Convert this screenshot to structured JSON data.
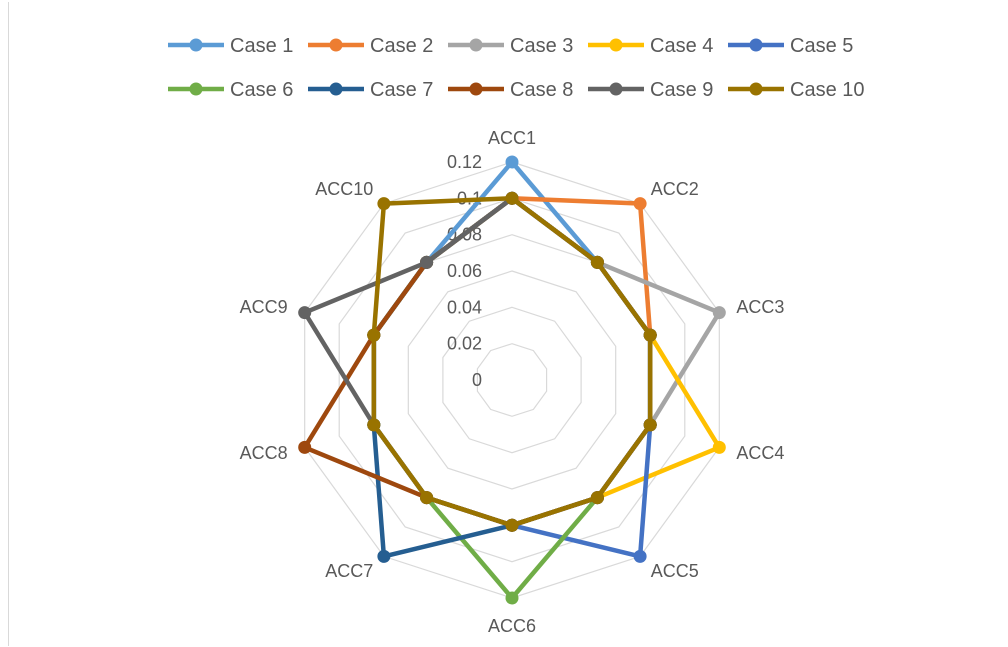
{
  "chart_data": {
    "type": "radar",
    "title": "",
    "categories": [
      "ACC1",
      "ACC2",
      "ACC3",
      "ACC4",
      "ACC5",
      "ACC6",
      "ACC7",
      "ACC8",
      "ACC9",
      "ACC10"
    ],
    "radial_ticks": [
      "0",
      "0.02",
      "0.04",
      "0.06",
      "0.08",
      "0.1",
      "0.12"
    ],
    "rlim": [
      0,
      0.12
    ],
    "grid": true,
    "legend": "top",
    "series": [
      {
        "name": "Case 1",
        "color": "#5B9BD5",
        "values": [
          0.12,
          0.08,
          0.08,
          0.08,
          0.08,
          0.08,
          0.08,
          0.08,
          0.08,
          0.08
        ]
      },
      {
        "name": "Case 2",
        "color": "#ED7D31",
        "values": [
          0.1,
          0.12,
          0.08,
          0.08,
          0.08,
          0.08,
          0.08,
          0.08,
          0.08,
          0.08
        ]
      },
      {
        "name": "Case 3",
        "color": "#A5A5A5",
        "values": [
          0.1,
          0.08,
          0.12,
          0.08,
          0.08,
          0.08,
          0.08,
          0.08,
          0.08,
          0.08
        ]
      },
      {
        "name": "Case 4",
        "color": "#FFC000",
        "values": [
          0.1,
          0.08,
          0.08,
          0.12,
          0.08,
          0.08,
          0.08,
          0.08,
          0.08,
          0.08
        ]
      },
      {
        "name": "Case 5",
        "color": "#4472C4",
        "values": [
          0.1,
          0.08,
          0.08,
          0.08,
          0.12,
          0.08,
          0.08,
          0.08,
          0.08,
          0.08
        ]
      },
      {
        "name": "Case 6",
        "color": "#70AD47",
        "values": [
          0.1,
          0.08,
          0.08,
          0.08,
          0.08,
          0.12,
          0.08,
          0.08,
          0.08,
          0.08
        ]
      },
      {
        "name": "Case 7",
        "color": "#255E91",
        "values": [
          0.1,
          0.08,
          0.08,
          0.08,
          0.08,
          0.08,
          0.12,
          0.08,
          0.08,
          0.08
        ]
      },
      {
        "name": "Case 8",
        "color": "#9E480E",
        "values": [
          0.1,
          0.08,
          0.08,
          0.08,
          0.08,
          0.08,
          0.08,
          0.12,
          0.08,
          0.08
        ]
      },
      {
        "name": "Case 9",
        "color": "#636363",
        "values": [
          0.1,
          0.08,
          0.08,
          0.08,
          0.08,
          0.08,
          0.08,
          0.08,
          0.12,
          0.08
        ]
      },
      {
        "name": "Case 10",
        "color": "#997300",
        "values": [
          0.1,
          0.08,
          0.08,
          0.08,
          0.08,
          0.08,
          0.08,
          0.08,
          0.08,
          0.12
        ]
      }
    ],
    "colors": {
      "grid": "#D9D9D9",
      "text": "#595959"
    }
  }
}
